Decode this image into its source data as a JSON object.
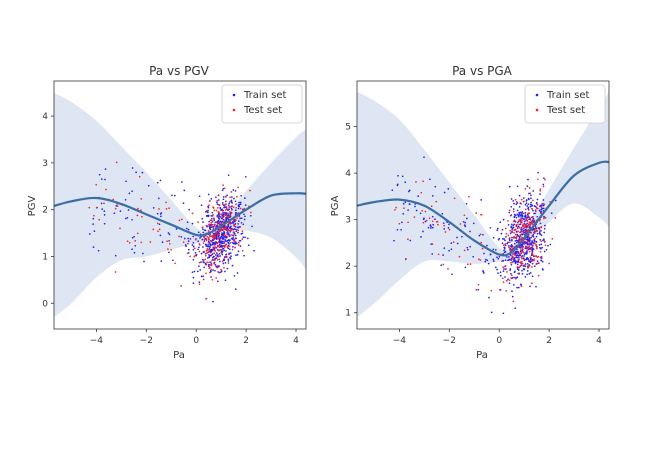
{
  "chart_data": [
    {
      "type": "scatter",
      "title": "Pa vs PGV",
      "xlabel": "Pa",
      "ylabel": "PGV",
      "xlim": [
        -5.7,
        4.4
      ],
      "ylim": [
        -0.55,
        4.75
      ],
      "xticks": [
        -4,
        -2,
        0,
        2,
        4
      ],
      "yticks": [
        0,
        1,
        2,
        3,
        4
      ],
      "grid": false,
      "legend_position": "top-right",
      "series": [
        {
          "name": "Train set",
          "color": "#1f1fff",
          "marker": "dot"
        },
        {
          "name": "Test set",
          "color": "#ff1f1f",
          "marker": "dot"
        }
      ],
      "scatter_model": {
        "cluster_center": [
          1.0,
          1.5
        ],
        "cluster_spread": [
          0.45,
          0.4
        ],
        "n_train": 700,
        "n_test": 300
      },
      "fit_line": {
        "color": "#3a6ea5",
        "x": [
          -5.7,
          -5.0,
          -4.0,
          -3.0,
          -2.0,
          -1.0,
          0.0,
          0.5,
          1.0,
          2.0,
          3.0,
          4.0,
          4.4
        ],
        "y": [
          2.08,
          2.18,
          2.25,
          2.12,
          1.9,
          1.68,
          1.46,
          1.5,
          1.65,
          2.0,
          2.3,
          2.35,
          2.34
        ]
      },
      "confidence_band": {
        "color": "#dae3f3",
        "x": [
          -5.7,
          -5.0,
          -4.0,
          -3.0,
          -2.0,
          -1.0,
          0.0,
          0.5,
          1.0,
          2.0,
          3.0,
          4.0,
          4.4
        ],
        "upper": [
          4.5,
          4.3,
          3.9,
          3.35,
          2.8,
          2.2,
          1.62,
          1.58,
          1.73,
          2.4,
          3.0,
          3.55,
          3.72
        ],
        "lower": [
          -0.3,
          0.0,
          0.55,
          0.92,
          1.0,
          1.15,
          1.28,
          1.38,
          1.57,
          1.55,
          1.4,
          0.98,
          0.72
        ]
      }
    },
    {
      "type": "scatter",
      "title": "Pa vs PGA",
      "xlabel": "Pa",
      "ylabel": "PGA",
      "xlim": [
        -5.7,
        4.4
      ],
      "ylim": [
        0.65,
        5.98
      ],
      "xticks": [
        -4,
        -2,
        0,
        2,
        4
      ],
      "yticks": [
        1,
        2,
        3,
        4,
        5
      ],
      "grid": false,
      "legend_position": "top-right",
      "series": [
        {
          "name": "Train set",
          "color": "#1f1fff",
          "marker": "dot"
        },
        {
          "name": "Test set",
          "color": "#ff1f1f",
          "marker": "dot"
        }
      ],
      "scatter_model": {
        "cluster_center": [
          1.0,
          2.6
        ],
        "cluster_spread": [
          0.45,
          0.45
        ],
        "n_train": 700,
        "n_test": 300
      },
      "fit_line": {
        "color": "#3a6ea5",
        "x": [
          -5.7,
          -5.0,
          -4.0,
          -3.0,
          -2.0,
          -1.0,
          0.0,
          0.5,
          1.0,
          2.0,
          3.0,
          4.0,
          4.4
        ],
        "y": [
          3.3,
          3.38,
          3.43,
          3.3,
          2.95,
          2.55,
          2.25,
          2.3,
          2.6,
          3.3,
          3.95,
          4.22,
          4.24
        ]
      },
      "confidence_band": {
        "color": "#dae3f3",
        "x": [
          -5.7,
          -5.0,
          -4.0,
          -3.0,
          -2.0,
          -1.0,
          0.0,
          0.5,
          1.0,
          2.0,
          3.0,
          4.0,
          4.4
        ],
        "upper": [
          5.75,
          5.55,
          5.15,
          4.5,
          3.8,
          3.1,
          2.4,
          2.42,
          2.75,
          3.65,
          4.55,
          5.4,
          5.75
        ],
        "lower": [
          0.9,
          1.2,
          1.7,
          2.1,
          2.1,
          2.05,
          2.1,
          2.18,
          2.45,
          2.95,
          3.35,
          3.05,
          2.85
        ]
      }
    }
  ]
}
